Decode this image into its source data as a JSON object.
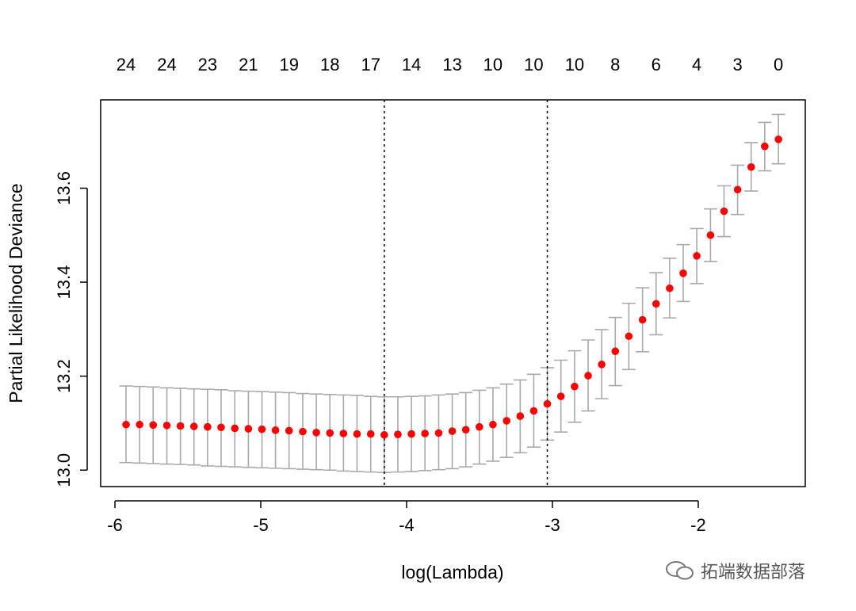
{
  "chart_data": {
    "type": "scatter",
    "title": "",
    "xlabel": "log(Lambda)",
    "ylabel": "Partial Likelihood Deviance",
    "xlim": [
      -6.098,
      -1.266
    ],
    "ylim": [
      12.965,
      13.788
    ],
    "x_ticks": [
      -6,
      -5,
      -4,
      -3,
      -2
    ],
    "y_ticks": [
      "13.0",
      "13.2",
      "13.4",
      "13.6"
    ],
    "grid": false,
    "point_color": "#ff0000",
    "errorbar_color": "#a9a9a9",
    "vlines": [
      -4.153,
      -3.035
    ],
    "top_axis_labels": [
      "24",
      "24",
      "23",
      "21",
      "19",
      "18",
      "17",
      "14",
      "13",
      "10",
      "10",
      "10",
      "8",
      "6",
      "4",
      "3",
      "0"
    ],
    "top_axis_every": 3,
    "x": [
      -5.924,
      -5.831,
      -5.738,
      -5.644,
      -5.551,
      -5.458,
      -5.365,
      -5.272,
      -5.178,
      -5.085,
      -4.992,
      -4.899,
      -4.806,
      -4.712,
      -4.619,
      -4.526,
      -4.433,
      -4.34,
      -4.246,
      -4.153,
      -4.06,
      -3.967,
      -3.874,
      -3.78,
      -3.687,
      -3.594,
      -3.501,
      -3.408,
      -3.314,
      -3.221,
      -3.128,
      -3.035,
      -2.942,
      -2.848,
      -2.755,
      -2.662,
      -2.569,
      -2.476,
      -2.382,
      -2.289,
      -2.196,
      -2.103,
      -2.01,
      -1.916,
      -1.823,
      -1.73,
      -1.637,
      -1.544,
      -1.45
    ],
    "y": [
      13.097,
      13.097,
      13.096,
      13.095,
      13.094,
      13.093,
      13.092,
      13.091,
      13.089,
      13.088,
      13.087,
      13.085,
      13.084,
      13.082,
      13.08,
      13.079,
      13.078,
      13.077,
      13.077,
      13.075,
      13.076,
      13.077,
      13.078,
      13.079,
      13.083,
      13.086,
      13.092,
      13.097,
      13.105,
      13.115,
      13.126,
      13.141,
      13.157,
      13.178,
      13.201,
      13.225,
      13.253,
      13.285,
      13.32,
      13.354,
      13.387,
      13.419,
      13.456,
      13.5,
      13.551,
      13.597,
      13.645,
      13.689,
      13.704
    ],
    "upper": [
      13.179,
      13.178,
      13.177,
      13.175,
      13.174,
      13.173,
      13.172,
      13.171,
      13.169,
      13.168,
      13.167,
      13.166,
      13.165,
      13.163,
      13.162,
      13.161,
      13.16,
      13.159,
      13.157,
      13.156,
      13.156,
      13.157,
      13.158,
      13.16,
      13.162,
      13.165,
      13.17,
      13.175,
      13.183,
      13.192,
      13.204,
      13.218,
      13.234,
      13.254,
      13.277,
      13.299,
      13.325,
      13.355,
      13.388,
      13.42,
      13.451,
      13.48,
      13.514,
      13.556,
      13.605,
      13.649,
      13.697,
      13.74,
      13.757
    ],
    "lower": [
      13.016,
      13.015,
      13.014,
      13.013,
      13.012,
      13.011,
      13.009,
      13.008,
      13.007,
      13.006,
      13.005,
      13.004,
      13.003,
      13.002,
      13.001,
      13.0,
      12.998,
      12.997,
      12.996,
      12.995,
      12.996,
      12.997,
      12.999,
      13.001,
      13.003,
      13.007,
      13.013,
      13.019,
      13.027,
      13.037,
      13.049,
      13.064,
      13.081,
      13.102,
      13.126,
      13.152,
      13.18,
      13.214,
      13.252,
      13.288,
      13.324,
      13.359,
      13.397,
      13.444,
      13.497,
      13.544,
      13.594,
      13.637,
      13.652
    ]
  },
  "watermark": {
    "text": "拓端数据部落",
    "icon": "wechat-icon"
  }
}
